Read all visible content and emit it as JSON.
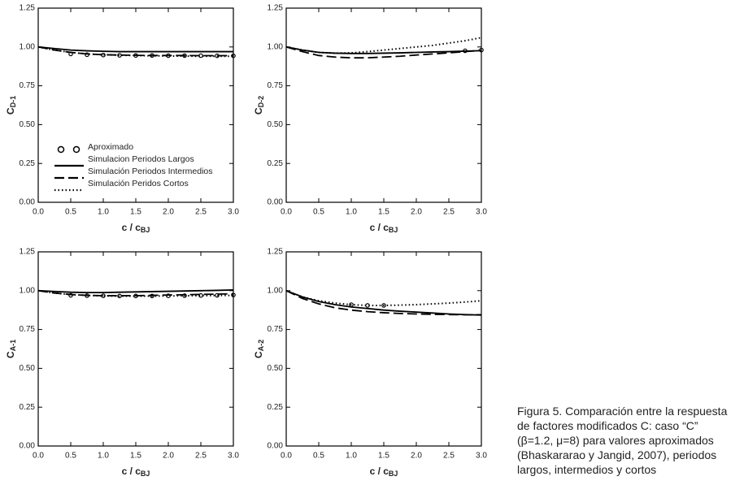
{
  "chart_data": [
    {
      "type": "line",
      "ylabel_main": "C",
      "ylabel_sub": "D-1",
      "xlabel_main": "c / c",
      "xlabel_sub": "BJ",
      "legend": true,
      "x": [
        0,
        0.25,
        0.5,
        0.75,
        1,
        1.25,
        1.5,
        1.75,
        2,
        2.25,
        2.5,
        2.75,
        3
      ],
      "series": [
        {
          "name": "Aproximado",
          "color": "#000",
          "style": "marker",
          "values": [
            null,
            null,
            0.955,
            0.95,
            0.948,
            0.946,
            0.945,
            0.945,
            0.944,
            0.944,
            0.944,
            0.943,
            0.943
          ]
        },
        {
          "name": "Simulacion Periodos Largos",
          "color": "#000",
          "style": "solid",
          "values": [
            1.0,
            0.99,
            0.98,
            0.975,
            0.972,
            0.97,
            0.97,
            0.97,
            0.97,
            0.97,
            0.97,
            0.97,
            0.97
          ]
        },
        {
          "name": "Simulación Periodos Intermedios",
          "color": "#000",
          "style": "dash",
          "values": [
            1.0,
            0.98,
            0.965,
            0.955,
            0.95,
            0.948,
            0.946,
            0.945,
            0.945,
            0.945,
            0.944,
            0.944,
            0.944
          ]
        },
        {
          "name": "Simulación Peridos Cortos",
          "color": "#000",
          "style": "dot",
          "values": [
            1.0,
            0.98,
            0.965,
            0.955,
            0.95,
            0.947,
            0.945,
            0.943,
            0.942,
            0.941,
            0.94,
            0.94,
            0.94
          ]
        }
      ],
      "xlim": [
        0,
        3
      ],
      "ylim": [
        0,
        1.25
      ],
      "xticks": [
        {
          "value": 0,
          "label": "0.0"
        },
        {
          "value": 0.5,
          "label": "0.5"
        },
        {
          "value": 1,
          "label": "1.0"
        },
        {
          "value": 1.5,
          "label": "1.5"
        },
        {
          "value": 2,
          "label": "2.0"
        },
        {
          "value": 2.5,
          "label": "2.5"
        },
        {
          "value": 3,
          "label": "3.0"
        }
      ],
      "yticks": [
        {
          "value": 0,
          "label": "0.00"
        },
        {
          "value": 0.25,
          "label": "0.25"
        },
        {
          "value": 0.5,
          "label": "0.50"
        },
        {
          "value": 0.75,
          "label": "0.75"
        },
        {
          "value": 1,
          "label": "1.00"
        },
        {
          "value": 1.25,
          "label": "1.25"
        }
      ]
    },
    {
      "type": "line",
      "ylabel_main": "C",
      "ylabel_sub": "D-2",
      "xlabel_main": "c / c",
      "xlabel_sub": "BJ",
      "legend": false,
      "x": [
        0,
        0.25,
        0.5,
        0.75,
        1,
        1.25,
        1.5,
        1.75,
        2,
        2.25,
        2.5,
        2.75,
        3
      ],
      "series": [
        {
          "name": "Aproximado",
          "color": "#000",
          "style": "marker",
          "values": [
            null,
            null,
            null,
            null,
            null,
            null,
            null,
            null,
            null,
            null,
            null,
            0.975,
            0.98
          ]
        },
        {
          "name": "Simulacion Periodos Largos",
          "color": "#000",
          "style": "solid",
          "values": [
            1.0,
            0.98,
            0.965,
            0.96,
            0.958,
            0.958,
            0.96,
            0.962,
            0.965,
            0.968,
            0.97,
            0.973,
            0.976
          ]
        },
        {
          "name": "Simulación Periodos Intermedios",
          "color": "#000",
          "style": "dash",
          "values": [
            1.0,
            0.97,
            0.945,
            0.935,
            0.93,
            0.93,
            0.935,
            0.94,
            0.948,
            0.955,
            0.962,
            0.97,
            0.978
          ]
        },
        {
          "name": "Simulación Peridos Cortos",
          "color": "#000",
          "style": "dot",
          "values": [
            1.0,
            0.98,
            0.965,
            0.96,
            0.962,
            0.97,
            0.98,
            0.99,
            1.0,
            1.01,
            1.025,
            1.04,
            1.06
          ]
        }
      ],
      "xlim": [
        0,
        3
      ],
      "ylim": [
        0,
        1.25
      ],
      "xticks": [
        {
          "value": 0,
          "label": "0.0"
        },
        {
          "value": 0.5,
          "label": "0.5"
        },
        {
          "value": 1,
          "label": "1.0"
        },
        {
          "value": 1.5,
          "label": "1.5"
        },
        {
          "value": 2,
          "label": "2.0"
        },
        {
          "value": 2.5,
          "label": "2.5"
        },
        {
          "value": 3,
          "label": "3.0"
        }
      ],
      "yticks": [
        {
          "value": 0,
          "label": "0.00"
        },
        {
          "value": 0.25,
          "label": "0.25"
        },
        {
          "value": 0.5,
          "label": "0.50"
        },
        {
          "value": 0.75,
          "label": "0.75"
        },
        {
          "value": 1,
          "label": "1.00"
        },
        {
          "value": 1.25,
          "label": "1.25"
        }
      ]
    },
    {
      "type": "line",
      "ylabel_main": "C",
      "ylabel_sub": "A-1",
      "xlabel_main": "c / c",
      "xlabel_sub": "BJ",
      "legend": false,
      "x": [
        0,
        0.25,
        0.5,
        0.75,
        1,
        1.25,
        1.5,
        1.75,
        2,
        2.25,
        2.5,
        2.75,
        3
      ],
      "series": [
        {
          "name": "Aproximado",
          "color": "#000",
          "style": "marker",
          "values": [
            null,
            null,
            0.97,
            0.968,
            0.967,
            0.966,
            0.966,
            0.966,
            0.967,
            0.968,
            0.969,
            0.97,
            0.972
          ]
        },
        {
          "name": "Simulacion Periodos Largos",
          "color": "#000",
          "style": "solid",
          "values": [
            1.0,
            0.995,
            0.99,
            0.988,
            0.988,
            0.99,
            0.992,
            0.994,
            0.996,
            0.998,
            1.0,
            1.002,
            1.005
          ]
        },
        {
          "name": "Simulación Periodos Intermedios",
          "color": "#000",
          "style": "dash",
          "values": [
            1.0,
            0.985,
            0.975,
            0.97,
            0.968,
            0.968,
            0.968,
            0.97,
            0.972,
            0.974,
            0.976,
            0.978,
            0.98
          ]
        },
        {
          "name": "Simulación Peridos Cortos",
          "color": "#000",
          "style": "dot",
          "values": [
            1.0,
            0.985,
            0.975,
            0.97,
            0.966,
            0.965,
            0.965,
            0.965,
            0.966,
            0.967,
            0.968,
            0.969,
            0.97
          ]
        }
      ],
      "xlim": [
        0,
        3
      ],
      "ylim": [
        0,
        1.25
      ],
      "xticks": [
        {
          "value": 0,
          "label": "0.0"
        },
        {
          "value": 0.5,
          "label": "0.5"
        },
        {
          "value": 1,
          "label": "1.0"
        },
        {
          "value": 1.5,
          "label": "1.5"
        },
        {
          "value": 2,
          "label": "2.0"
        },
        {
          "value": 2.5,
          "label": "2.5"
        },
        {
          "value": 3,
          "label": "3.0"
        }
      ],
      "yticks": [
        {
          "value": 0,
          "label": "0.00"
        },
        {
          "value": 0.25,
          "label": "0.25"
        },
        {
          "value": 0.5,
          "label": "0.50"
        },
        {
          "value": 0.75,
          "label": "0.75"
        },
        {
          "value": 1,
          "label": "1.00"
        },
        {
          "value": 1.25,
          "label": "1.25"
        }
      ]
    },
    {
      "type": "line",
      "ylabel_main": "C",
      "ylabel_sub": "A-2",
      "xlabel_main": "c / c",
      "xlabel_sub": "BJ",
      "legend": false,
      "x": [
        0,
        0.25,
        0.5,
        0.75,
        1,
        1.25,
        1.5,
        1.75,
        2,
        2.25,
        2.5,
        2.75,
        3
      ],
      "series": [
        {
          "name": "Aproximado",
          "color": "#000",
          "style": "marker",
          "values": [
            null,
            null,
            null,
            null,
            0.91,
            0.905,
            0.905,
            null,
            null,
            null,
            null,
            null,
            null
          ]
        },
        {
          "name": "Simulacion Periodos Largos",
          "color": "#000",
          "style": "solid",
          "values": [
            1.0,
            0.96,
            0.93,
            0.91,
            0.895,
            0.885,
            0.875,
            0.868,
            0.862,
            0.856,
            0.85,
            0.846,
            0.843
          ]
        },
        {
          "name": "Simulación Periodos Intermedios",
          "color": "#000",
          "style": "dash",
          "values": [
            1.0,
            0.95,
            0.915,
            0.89,
            0.875,
            0.865,
            0.858,
            0.853,
            0.85,
            0.848,
            0.846,
            0.845,
            0.845
          ]
        },
        {
          "name": "Simulación Peridos Cortos",
          "color": "#000",
          "style": "dot",
          "values": [
            1.0,
            0.96,
            0.935,
            0.92,
            0.91,
            0.905,
            0.905,
            0.907,
            0.91,
            0.915,
            0.92,
            0.927,
            0.935
          ]
        }
      ],
      "xlim": [
        0,
        3
      ],
      "ylim": [
        0,
        1.25
      ],
      "xticks": [
        {
          "value": 0,
          "label": "0.0"
        },
        {
          "value": 0.5,
          "label": "0.5"
        },
        {
          "value": 1,
          "label": "1.0"
        },
        {
          "value": 1.5,
          "label": "1.5"
        },
        {
          "value": 2,
          "label": "2.0"
        },
        {
          "value": 2.5,
          "label": "2.5"
        },
        {
          "value": 3,
          "label": "3.0"
        }
      ],
      "yticks": [
        {
          "value": 0,
          "label": "0.00"
        },
        {
          "value": 0.25,
          "label": "0.25"
        },
        {
          "value": 0.5,
          "label": "0.50"
        },
        {
          "value": 0.75,
          "label": "0.75"
        },
        {
          "value": 1,
          "label": "1.00"
        },
        {
          "value": 1.25,
          "label": "1.25"
        }
      ]
    }
  ],
  "caption": [
    "Figura 5. Comparación entre la respuesta",
    "de factores modificados C: caso “C”",
    "(β=1.2, μ=8) para valores aproximados",
    "(Bhaskararao y Jangid, 2007), periodos",
    "largos, intermedios y cortos"
  ]
}
